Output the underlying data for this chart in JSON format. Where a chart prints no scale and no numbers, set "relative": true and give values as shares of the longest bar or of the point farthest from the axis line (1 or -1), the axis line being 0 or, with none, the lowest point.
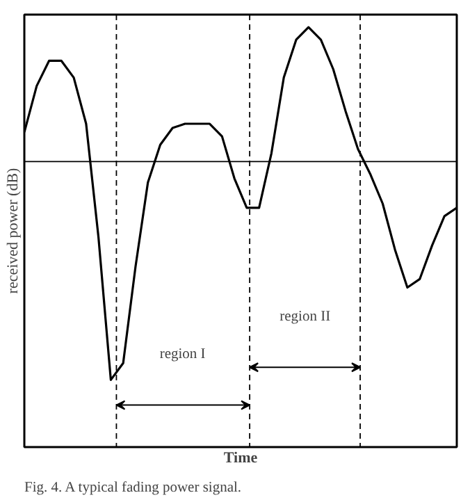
{
  "chart_data": {
    "type": "line",
    "relative": true,
    "xlabel": "Time",
    "ylabel": "received power (dB)",
    "marker": "none",
    "line_style": "solid",
    "categories": [
      null,
      null,
      null,
      null,
      null,
      null,
      null,
      null,
      null,
      null,
      null,
      null,
      null,
      null,
      null,
      null,
      null,
      null,
      null,
      null,
      null,
      null,
      null,
      null,
      null,
      null,
      null,
      null,
      null,
      null,
      null,
      null,
      null,
      null,
      null,
      null
    ],
    "series": [
      {
        "color": "#000000",
        "values": [
          0.75,
          0.86,
          0.92,
          0.92,
          0.88,
          0.77,
          0.5,
          0.16,
          0.2,
          0.43,
          0.63,
          0.72,
          0.76,
          0.77,
          0.77,
          0.77,
          0.74,
          0.64,
          0.57,
          0.57,
          0.7,
          0.88,
          0.97,
          1,
          0.97,
          0.9,
          0.8,
          0.71,
          0.65,
          0.58,
          0.47,
          0.38,
          0.4,
          0.48,
          0.55,
          0.57
        ]
      }
    ],
    "ref_lines": [
      {
        "axis": "y",
        "value": 0.68,
        "line_style": "solid"
      }
    ],
    "annotations": [
      "region I",
      "region II",
      "Fig. 4. A typical fading power signal."
    ]
  }
}
